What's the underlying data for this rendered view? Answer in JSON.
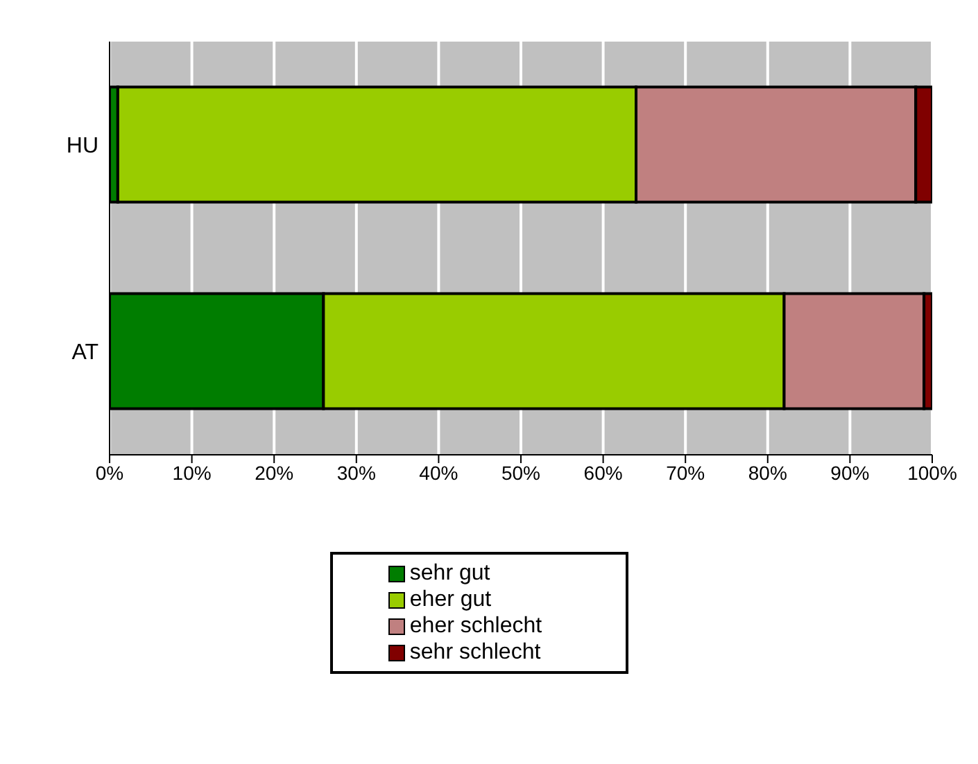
{
  "chart_data": {
    "type": "bar",
    "orientation": "horizontal",
    "stacked": true,
    "categories": [
      "HU",
      "AT"
    ],
    "series": [
      {
        "name": "sehr gut",
        "color": "#007d00",
        "values": [
          1,
          26
        ]
      },
      {
        "name": "eher gut",
        "color": "#99cc00",
        "values": [
          63,
          56
        ]
      },
      {
        "name": "eher schlecht",
        "color": "#c08080",
        "values": [
          34,
          17
        ]
      },
      {
        "name": "sehr schlecht",
        "color": "#800000",
        "values": [
          2,
          1
        ]
      }
    ],
    "xlim": [
      0,
      100
    ],
    "xticks": [
      {
        "value": 0,
        "label": "0%"
      },
      {
        "value": 10,
        "label": "10%"
      },
      {
        "value": 20,
        "label": "20%"
      },
      {
        "value": 30,
        "label": "30%"
      },
      {
        "value": 40,
        "label": "40%"
      },
      {
        "value": 50,
        "label": "50%"
      },
      {
        "value": 60,
        "label": "60%"
      },
      {
        "value": 70,
        "label": "70%"
      },
      {
        "value": 80,
        "label": "80%"
      },
      {
        "value": 90,
        "label": "90%"
      },
      {
        "value": 100,
        "label": "100%"
      }
    ],
    "grid": "x",
    "legend": "bottom"
  }
}
